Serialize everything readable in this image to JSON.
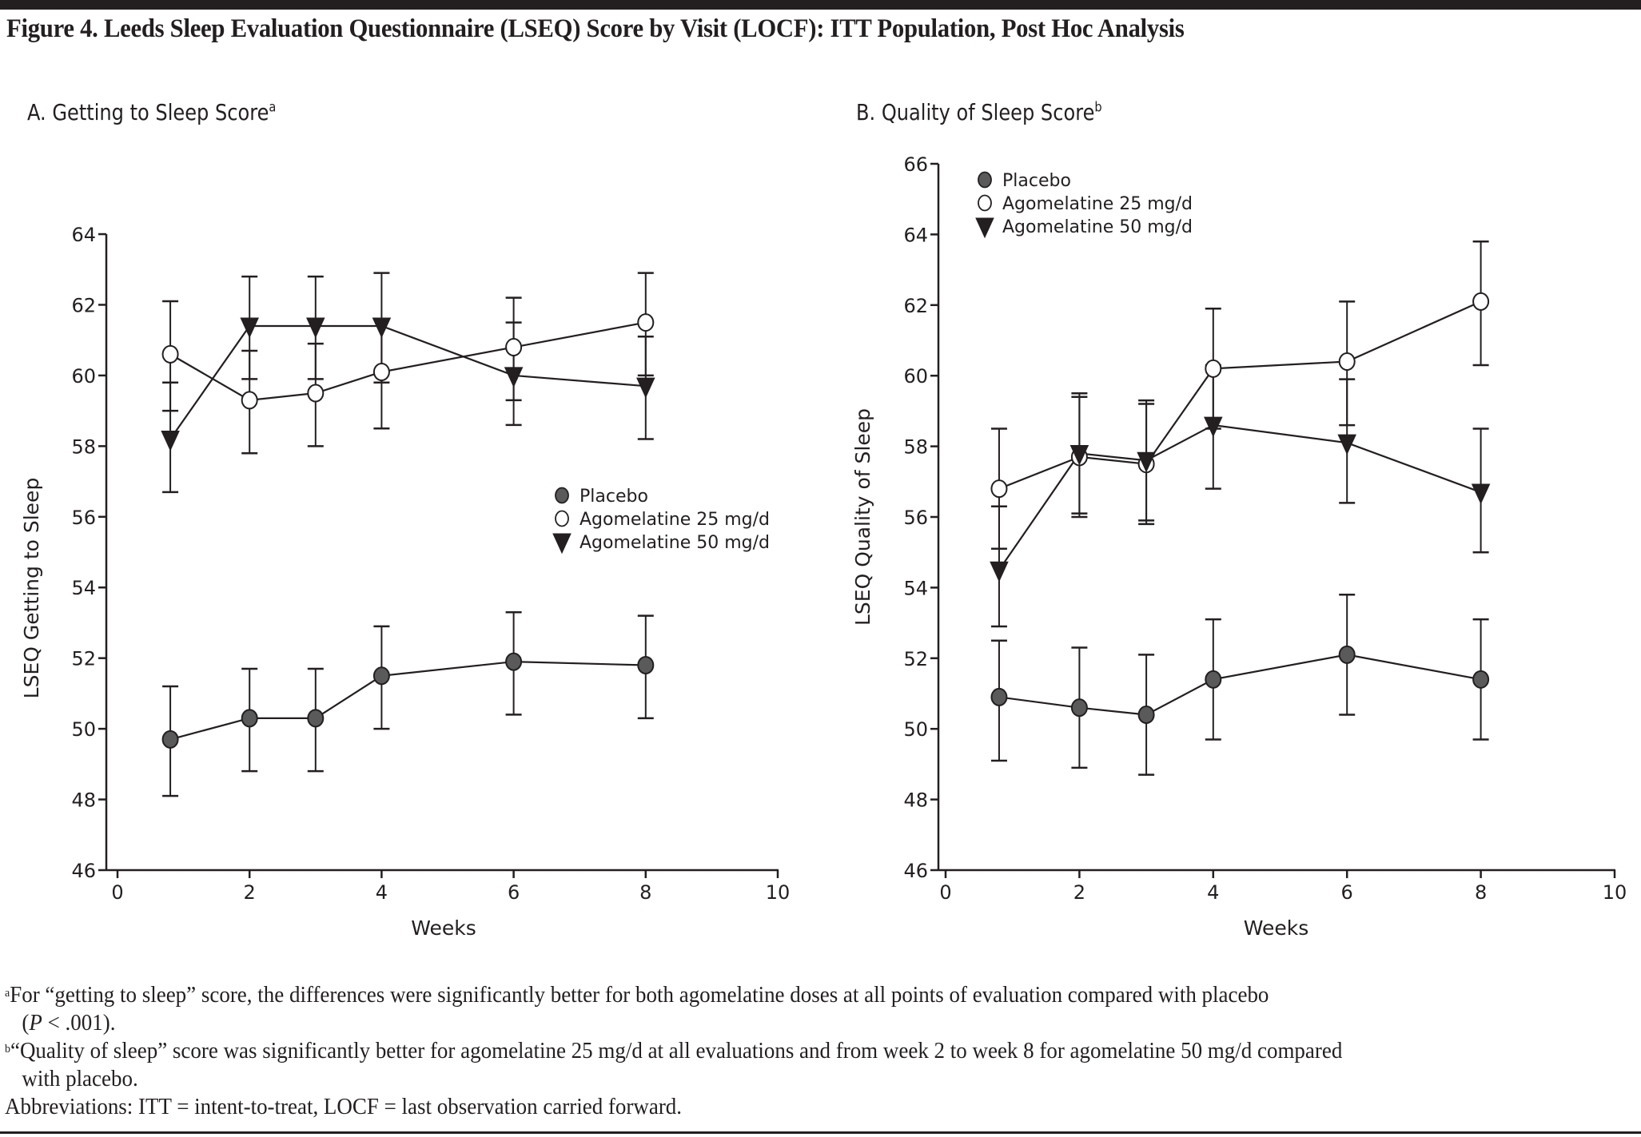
{
  "figure": {
    "title": "Figure 4. Leeds Sleep Evaluation Questionnaire (LSEQ) Score by Visit (LOCF): ITT Population, Post Hoc Analysis"
  },
  "panels": {
    "a": {
      "title": "A. Getting to Sleep Score",
      "superscript": "a"
    },
    "b": {
      "title": "B. Quality of Sleep Score",
      "superscript": "b"
    }
  },
  "footnotes": {
    "a_mark": "a",
    "a_text": "For “getting to sleep” score, the differences were significantly better for both agomelatine doses at all points of evaluation compared with placebo",
    "a_text2_open": "(",
    "a_text2_p": "P",
    "a_text2_rest": " < .001).",
    "b_mark": "b",
    "b_text": "“Quality of sleep” score was significantly better for agomelatine 25 mg/d at all evaluations and from week 2 to week 8 for agomelatine 50 mg/d compared",
    "b_text2": "with placebo.",
    "abbrev": "Abbreviations: ITT = intent-to-treat, LOCF = last observation carried forward."
  },
  "colors": {
    "ink": "#231f20",
    "placebo_fill": "#5a5a5a",
    "open_fill": "#ffffff",
    "triangle_fill": "#231f20"
  },
  "chart_data": [
    {
      "type": "line",
      "id": "a",
      "title": "A. Getting to Sleep Score",
      "xlabel": "Weeks",
      "ylabel": "LSEQ Getting to Sleep",
      "xlim": [
        0,
        10
      ],
      "ylim": [
        46,
        64
      ],
      "xticks": [
        0,
        2,
        4,
        6,
        8,
        10
      ],
      "yticks": [
        46,
        48,
        50,
        52,
        54,
        56,
        58,
        60,
        62,
        64
      ],
      "grid": false,
      "legend_position": "center-right",
      "x": [
        0.8,
        2,
        3,
        4,
        6,
        8
      ],
      "series": [
        {
          "name": "Placebo",
          "marker": "filled-circle",
          "values": [
            49.7,
            50.3,
            50.3,
            51.5,
            51.9,
            51.8
          ],
          "err_low": [
            48.1,
            48.8,
            48.8,
            50.0,
            50.4,
            50.3
          ],
          "err_high": [
            51.2,
            51.7,
            51.7,
            52.9,
            53.3,
            53.2
          ]
        },
        {
          "name": "Agomelatine 25 mg/d",
          "marker": "open-circle",
          "values": [
            60.6,
            59.3,
            59.5,
            60.1,
            60.8,
            61.5
          ],
          "err_low": [
            59.0,
            57.8,
            58.0,
            58.5,
            59.3,
            60.0
          ],
          "err_high": [
            62.1,
            60.7,
            60.9,
            61.6,
            62.2,
            62.9
          ]
        },
        {
          "name": "Agomelatine 50 mg/d",
          "marker": "filled-triangle-down",
          "values": [
            58.2,
            61.4,
            61.4,
            61.4,
            60.0,
            59.7
          ],
          "err_low": [
            56.7,
            59.9,
            59.9,
            59.8,
            58.6,
            58.2
          ],
          "err_high": [
            59.8,
            62.8,
            62.8,
            62.9,
            61.5,
            61.1
          ]
        }
      ]
    },
    {
      "type": "line",
      "id": "b",
      "title": "B. Quality of Sleep Score",
      "xlabel": "Weeks",
      "ylabel": "LSEQ Quality of Sleep",
      "xlim": [
        0,
        10
      ],
      "ylim": [
        46,
        66
      ],
      "xticks": [
        0,
        2,
        4,
        6,
        8,
        10
      ],
      "yticks": [
        46,
        48,
        50,
        52,
        54,
        56,
        58,
        60,
        62,
        64,
        66
      ],
      "grid": false,
      "legend_position": "top-left",
      "x": [
        0.8,
        2,
        3,
        4,
        6,
        8
      ],
      "series": [
        {
          "name": "Placebo",
          "marker": "filled-circle",
          "values": [
            50.9,
            50.6,
            50.4,
            51.4,
            52.1,
            51.4
          ],
          "err_low": [
            49.1,
            48.9,
            48.7,
            49.7,
            50.4,
            49.7
          ],
          "err_high": [
            52.5,
            52.3,
            52.1,
            53.1,
            53.8,
            53.1
          ]
        },
        {
          "name": "Agomelatine 25 mg/d",
          "marker": "open-circle",
          "values": [
            56.8,
            57.7,
            57.5,
            60.2,
            60.4,
            62.1
          ],
          "err_low": [
            55.1,
            56.0,
            55.8,
            58.5,
            58.6,
            60.3
          ],
          "err_high": [
            58.5,
            59.4,
            59.2,
            61.9,
            62.1,
            63.8
          ]
        },
        {
          "name": "Agomelatine 50 mg/d",
          "marker": "filled-triangle-down",
          "values": [
            54.5,
            57.8,
            57.6,
            58.6,
            58.1,
            56.7
          ],
          "err_low": [
            52.9,
            56.1,
            55.9,
            56.8,
            56.4,
            55.0
          ],
          "err_high": [
            56.3,
            59.5,
            59.3,
            60.3,
            59.9,
            58.5
          ]
        }
      ]
    }
  ]
}
